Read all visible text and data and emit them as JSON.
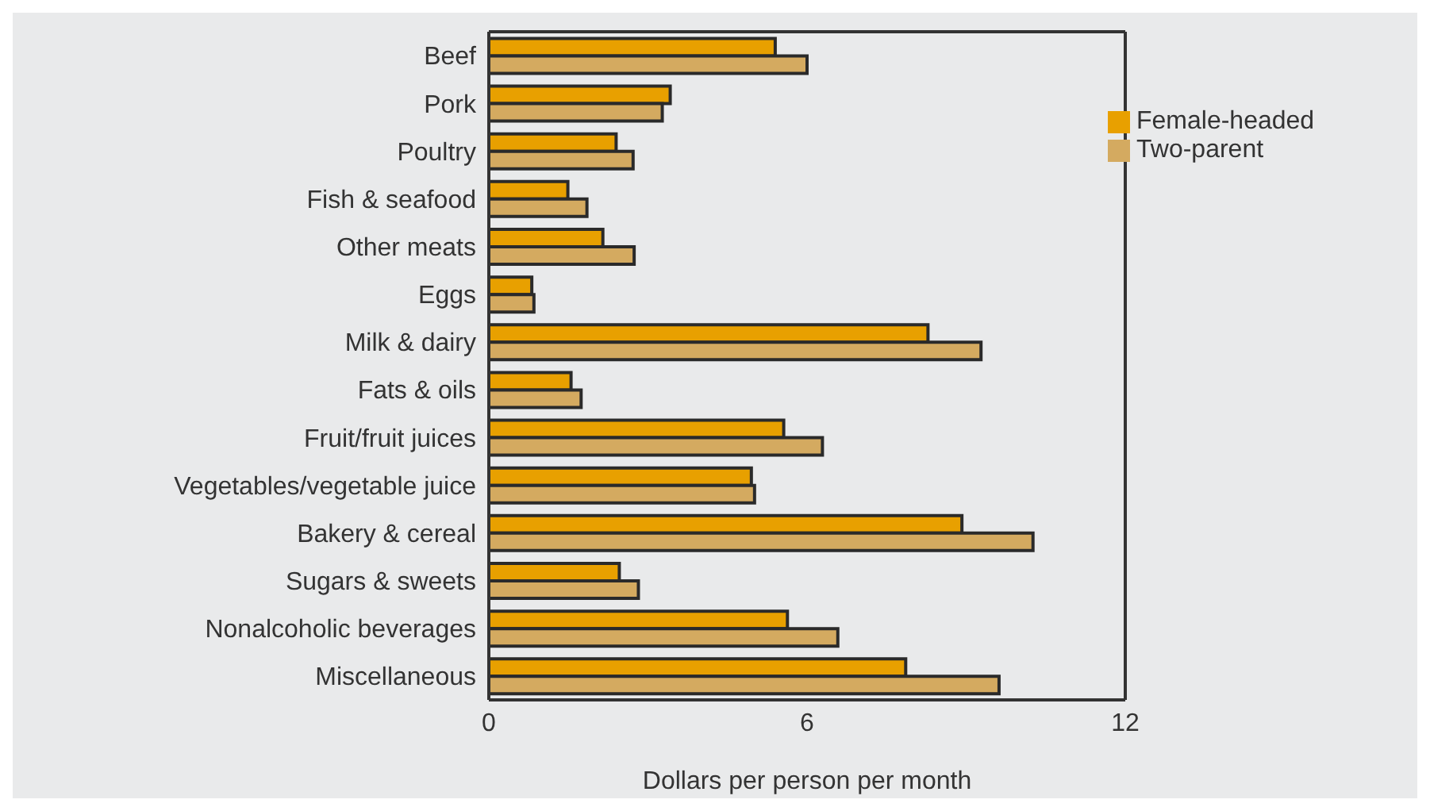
{
  "chart_data": {
    "type": "bar",
    "orientation": "horizontal",
    "xlabel": "Dollars per person per month",
    "categories": [
      "Beef",
      "Pork",
      "Poultry",
      "Fish & seafood",
      "Other meats",
      "Eggs",
      "Milk & dairy",
      "Fats & oils",
      "Fruit/fruit juices",
      "Vegetables/vegetable juice",
      "Bakery & cereal",
      "Sugars & sweets",
      "Nonalcoholic beverages",
      "Miscellaneous"
    ],
    "series": [
      {
        "name": "Female-headed",
        "color": "#e8a000",
        "values": [
          5.4,
          3.42,
          2.4,
          1.49,
          2.15,
          0.81,
          8.28,
          1.55,
          5.56,
          4.95,
          8.92,
          2.46,
          5.63,
          7.86
        ]
      },
      {
        "name": "Two-parent",
        "color": "#d4aa60",
        "values": [
          6.0,
          3.27,
          2.72,
          1.85,
          2.74,
          0.85,
          9.28,
          1.74,
          6.29,
          5.01,
          10.26,
          2.82,
          6.58,
          9.62
        ]
      }
    ],
    "xlim": [
      0,
      12
    ],
    "xticks": [
      0,
      6,
      12
    ],
    "grid": false,
    "legend": "top right"
  }
}
